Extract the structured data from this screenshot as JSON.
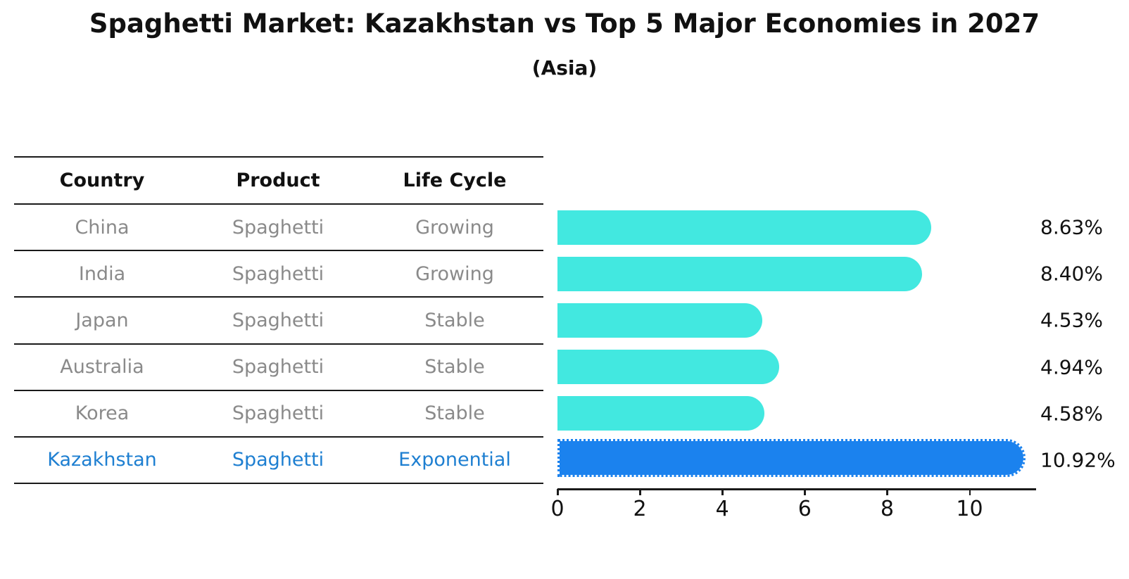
{
  "chart_data": {
    "type": "bar",
    "orientation": "horizontal",
    "title": "Spaghetti Market: Kazakhstan vs Top 5 Major Economies in 2027",
    "subtitle": "(Asia)",
    "categories": [
      "China",
      "India",
      "Japan",
      "Australia",
      "Korea",
      "Kazakhstan"
    ],
    "values": [
      8.63,
      8.4,
      4.53,
      4.94,
      4.58,
      10.92
    ],
    "value_labels": [
      "8.63%",
      "8.40%",
      "4.53%",
      "4.94%",
      "4.58%",
      "10.92%"
    ],
    "highlight_category": "Kazakhstan",
    "xlabel": "",
    "ylabel": "",
    "xlim": [
      0,
      11.6
    ],
    "x_ticks": [
      0,
      2,
      4,
      6,
      8,
      10
    ],
    "grid": "off",
    "legend": "none",
    "bar_color": "#42E8E0",
    "highlight_bar_color": "#1B82EE"
  },
  "table": {
    "columns": [
      "Country",
      "Product",
      "Life Cycle"
    ],
    "rows": [
      {
        "country": "China",
        "product": "Spaghetti",
        "life_cycle": "Growing",
        "value_label": "8.63%",
        "highlight": false
      },
      {
        "country": "India",
        "product": "Spaghetti",
        "life_cycle": "Growing",
        "value_label": "8.40%",
        "highlight": false
      },
      {
        "country": "Japan",
        "product": "Spaghetti",
        "life_cycle": "Stable",
        "value_label": "4.53%",
        "highlight": false
      },
      {
        "country": "Australia",
        "product": "Spaghetti",
        "life_cycle": "Stable",
        "value_label": "4.94%",
        "highlight": false
      },
      {
        "country": "Korea",
        "product": "Spaghetti",
        "life_cycle": "Stable",
        "value_label": "4.58%",
        "highlight": false
      },
      {
        "country": "Kazakhstan",
        "product": "Spaghetti",
        "life_cycle": "Exponential",
        "value_label": "10.92%",
        "highlight": true
      }
    ]
  },
  "colors": {
    "bar": "#42E8E0",
    "highlight_bar": "#1B82EE",
    "highlight_text": "#1E7FD1",
    "cell_text": "#8a8a8a",
    "header_text": "#111111",
    "line": "#1a1a1a"
  }
}
